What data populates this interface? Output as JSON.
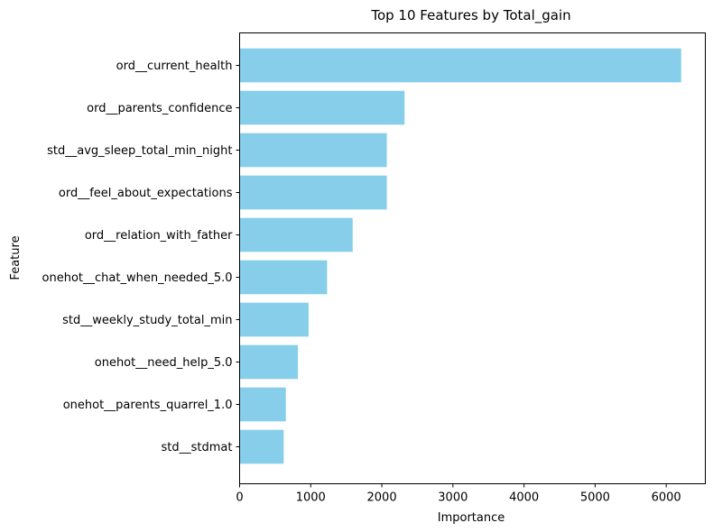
{
  "chart_data": {
    "type": "bar",
    "orientation": "horizontal",
    "title": "Top 10 Features by Total_gain",
    "xlabel": "Importance",
    "ylabel": "Feature",
    "categories": [
      "ord__current_health",
      "ord__parents_confidence",
      "std__avg_sleep_total_min_night",
      "ord__feel_about_expectations",
      "ord__relation_with_father",
      "onehot__chat_when_needed_5.0",
      "std__weekly_study_total_min",
      "onehot__need_help_5.0",
      "onehot__parents_quarrel_1.0",
      "std__stdmat"
    ],
    "values": [
      6210,
      2320,
      2070,
      2070,
      1590,
      1230,
      970,
      820,
      650,
      620
    ],
    "xlim": [
      0,
      6550
    ],
    "xticks": [
      0,
      1000,
      2000,
      3000,
      4000,
      5000,
      6000
    ],
    "xtick_labels": [
      "0",
      "1000",
      "2000",
      "3000",
      "4000",
      "5000",
      "6000"
    ],
    "bar_color": "#87ceeb",
    "grid": false,
    "legend": "none"
  }
}
